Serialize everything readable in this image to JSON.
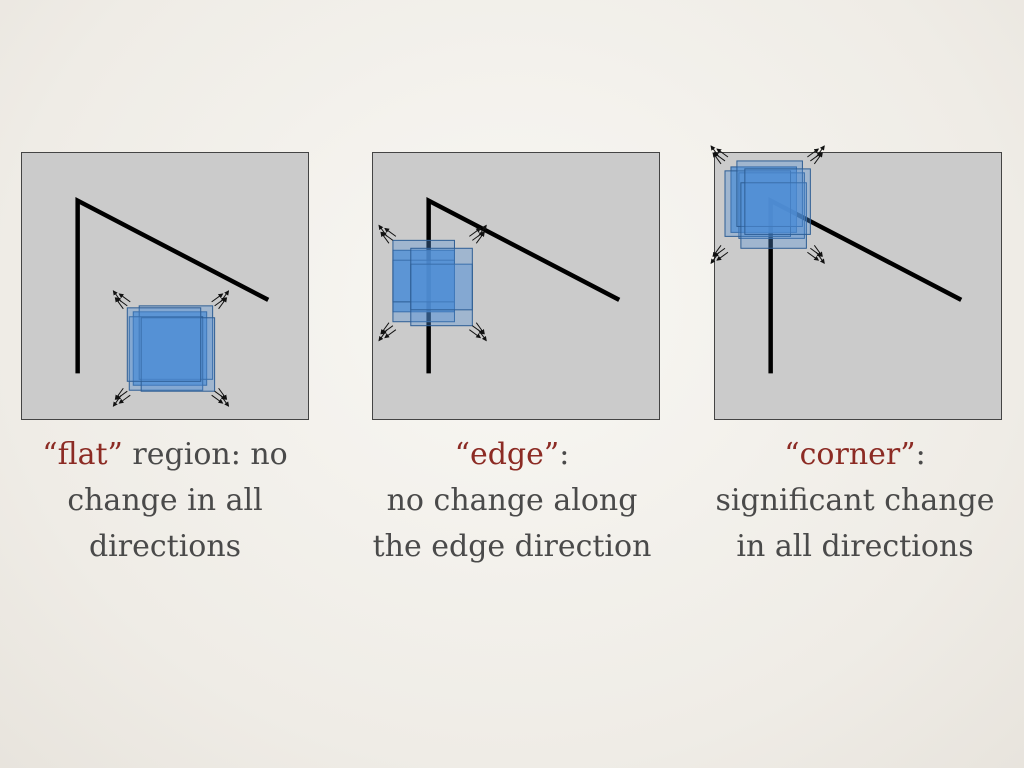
{
  "panels": [
    {
      "caption": {
        "term": "“flat”",
        "rest_1": " region: no",
        "line_2": "change in all",
        "line_3": "directions"
      }
    },
    {
      "caption": {
        "term": "“edge”",
        "rest_1": ":",
        "line_2": "no change along",
        "line_3": "the edge direction"
      }
    },
    {
      "caption": {
        "term": "“corner”",
        "rest_1": ":",
        "line_2": "significant change",
        "line_3": "in all directions"
      }
    }
  ],
  "colors": {
    "panel_bg": "#cbcbcb",
    "window_fill": "#4f8fd6",
    "window_stroke": "#2d5d94",
    "term_text": "#8c2b24",
    "body_text": "#4a4a4a"
  }
}
